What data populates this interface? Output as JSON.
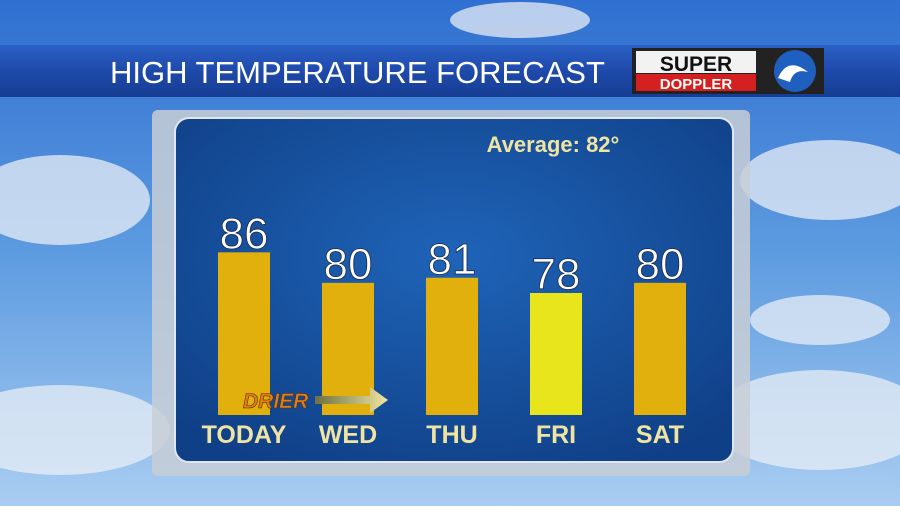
{
  "chart_data": {
    "type": "bar",
    "title": "HIGH TEMPERATURE FORECAST",
    "logo": {
      "top": "SUPER",
      "bottom": "DOPPLER"
    },
    "annotation": "Average: 82°",
    "note": "DRIER",
    "categories": [
      "TODAY",
      "WED",
      "THU",
      "FRI",
      "SAT"
    ],
    "values": [
      86,
      80,
      81,
      78,
      80
    ],
    "colors": [
      "#e2b00c",
      "#e2b00c",
      "#e2b00c",
      "#e9e51c",
      "#e2b00c"
    ],
    "ylim": [
      54,
      90
    ]
  }
}
